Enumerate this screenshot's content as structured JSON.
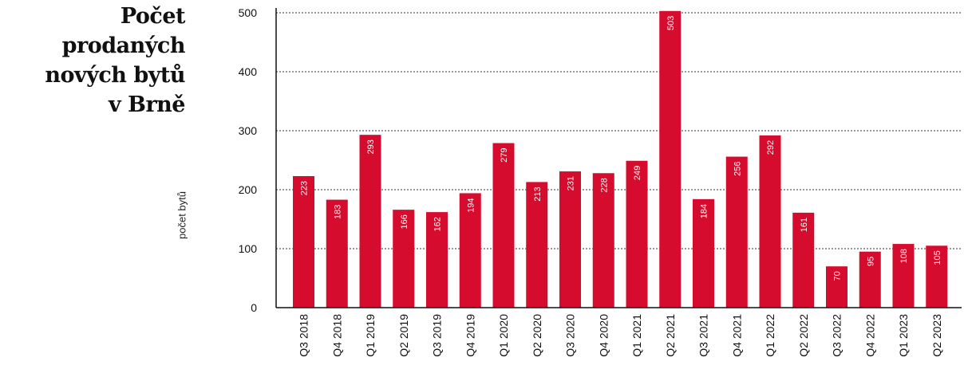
{
  "chart_data": {
    "type": "bar",
    "title": "Počet prodaných nových bytů v Brně",
    "title_lines": [
      "Počet prodaných",
      "nových bytů",
      "v Brně"
    ],
    "xlabel": "",
    "ylabel": "počet bytů",
    "ylim": [
      0,
      500
    ],
    "yticks": [
      0,
      100,
      200,
      300,
      400,
      500
    ],
    "grid": "horizontal dotted",
    "bar_color": "#d50c2d",
    "categories": [
      "Q3 2018",
      "Q4 2018",
      "Q1 2019",
      "Q2 2019",
      "Q3 2019",
      "Q4 2019",
      "Q1 2020",
      "Q2 2020",
      "Q3 2020",
      "Q4 2020",
      "Q1 2021",
      "Q2 2021",
      "Q3 2021",
      "Q4 2021",
      "Q1 2022",
      "Q2 2022",
      "Q3 2022",
      "Q4 2022",
      "Q1 2023",
      "Q2 2023"
    ],
    "values": [
      223,
      183,
      293,
      166,
      162,
      194,
      279,
      213,
      231,
      228,
      249,
      503,
      184,
      256,
      292,
      161,
      70,
      95,
      108,
      105
    ]
  }
}
